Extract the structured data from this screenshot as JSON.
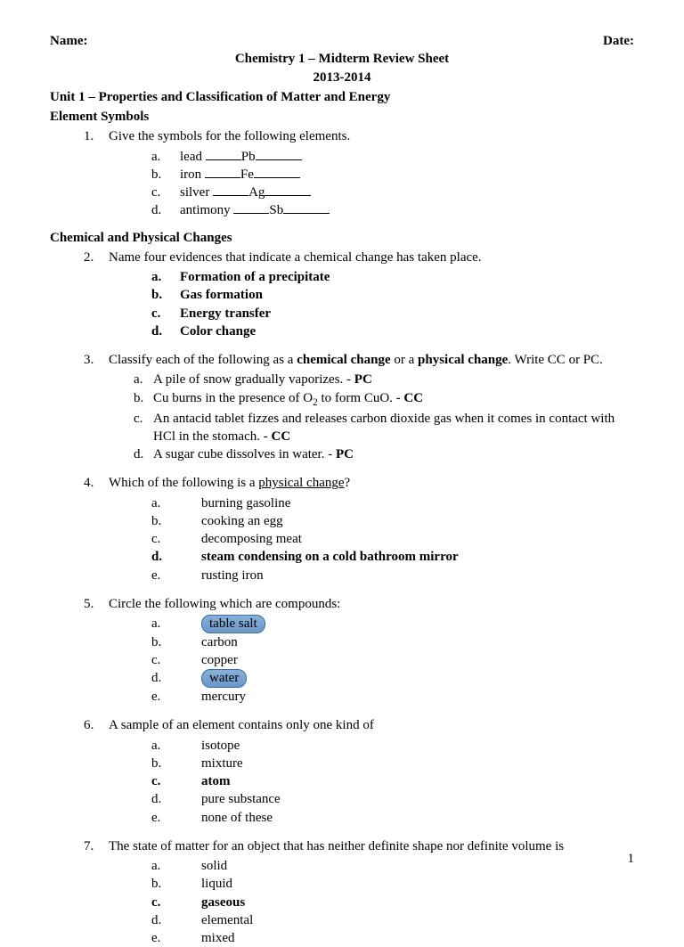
{
  "header": {
    "name_label": "Name:",
    "date_label": "Date:"
  },
  "title1": "Chemistry 1 – Midterm Review Sheet",
  "title2": "2013-2014",
  "unit": "Unit 1 – Properties and Classification of Matter and Energy",
  "s1": {
    "heading": "Element Symbols",
    "q1": {
      "num": "1.",
      "text": "Give the symbols for the following elements.",
      "rows": [
        {
          "l": "a.",
          "name": "lead",
          "sym": "Pb"
        },
        {
          "l": "b.",
          "name": "iron",
          "sym": "Fe"
        },
        {
          "l": "c.",
          "name": "silver",
          "sym": "Ag"
        },
        {
          "l": "d.",
          "name": "antimony",
          "sym": "Sb"
        }
      ]
    }
  },
  "s2": {
    "heading": "Chemical and Physical Changes",
    "q2": {
      "num": "2.",
      "text": "Name four evidences that indicate a chemical change has taken place.",
      "ans": [
        {
          "l": "a.",
          "t": "Formation of a precipitate"
        },
        {
          "l": "b.",
          "t": "Gas formation"
        },
        {
          "l": "c.",
          "t": "Energy transfer"
        },
        {
          "l": "d.",
          "t": "Color change"
        }
      ]
    },
    "q3": {
      "num": "3.",
      "pre": "Classify each of the following as a ",
      "b1": "chemical change",
      "mid": " or a ",
      "b2": "physical change",
      "post": ".  Write CC or PC.",
      "rows": [
        {
          "l": "a.",
          "t": "A pile of snow gradually vaporizes. - ",
          "b": "PC"
        },
        {
          "l": "b.",
          "pre": "Cu burns in the presence of O",
          "sub": "2",
          "post": " to form CuO. - ",
          "b": "CC"
        },
        {
          "l": "c.",
          "t": "An antacid tablet fizzes and releases carbon dioxide gas when it comes in contact with HCl in the stomach. - ",
          "b": "CC"
        },
        {
          "l": "d.",
          "t": "A sugar cube dissolves in water. - ",
          "b": "PC"
        }
      ]
    },
    "q4": {
      "num": "4.",
      "pre": "Which of the following is a ",
      "u": "physical change",
      "post": "?",
      "opts": [
        {
          "l": "a.",
          "t": "burning gasoline"
        },
        {
          "l": "b.",
          "t": "cooking an egg"
        },
        {
          "l": "c.",
          "t": "decomposing meat"
        },
        {
          "l": "d.",
          "t": "steam condensing on a cold bathroom mirror",
          "bold": true
        },
        {
          "l": "e.",
          "t": "rusting iron"
        }
      ]
    },
    "q5": {
      "num": "5.",
      "text": "Circle the following which are compounds:",
      "opts": [
        {
          "l": "a.",
          "t": "table salt",
          "circled": true
        },
        {
          "l": "b.",
          "t": "carbon"
        },
        {
          "l": "c.",
          "t": "copper"
        },
        {
          "l": "d.",
          "t": "water",
          "circled": true
        },
        {
          "l": "e.",
          "t": "mercury"
        }
      ]
    },
    "q6": {
      "num": "6.",
      "text": "A sample of an element contains only one kind of",
      "opts": [
        {
          "l": "a.",
          "t": "isotope"
        },
        {
          "l": "b.",
          "t": "mixture"
        },
        {
          "l": "c.",
          "t": "atom",
          "bold": true
        },
        {
          "l": "d.",
          "t": "pure substance"
        },
        {
          "l": "e.",
          "t": "none of these"
        }
      ]
    },
    "q7": {
      "num": "7.",
      "text": "The state of matter for an object that has neither definite shape nor definite volume is",
      "opts": [
        {
          "l": "a.",
          "t": "solid"
        },
        {
          "l": "b.",
          "t": "liquid"
        },
        {
          "l": "c.",
          "t": "gaseous",
          "bold": true
        },
        {
          "l": "d.",
          "t": "elemental"
        },
        {
          "l": "e.",
          "t": "mixed"
        }
      ]
    }
  },
  "page": "1",
  "colors": {
    "circle_fill_top": "#88b0d8",
    "circle_fill_bottom": "#6a98c8",
    "circle_border": "#3a6ea8",
    "text": "#000000",
    "background": "#ffffff"
  }
}
